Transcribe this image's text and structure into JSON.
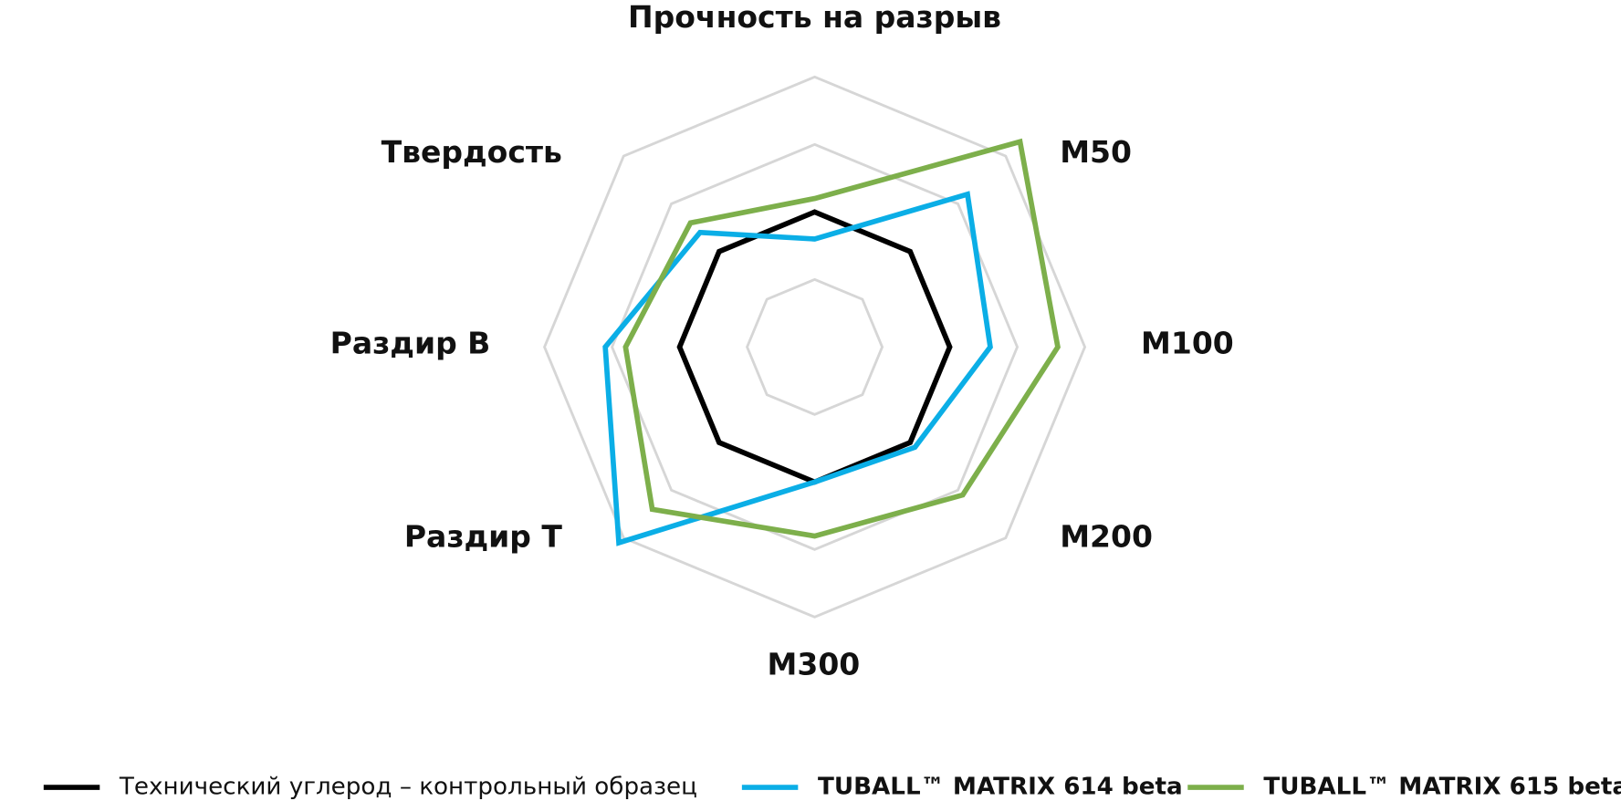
{
  "chart_data": {
    "type": "radar",
    "categories": [
      "Прочность на разрыв",
      "M50",
      "M100",
      "M200",
      "M300",
      "Раздир Т",
      "Раздир В",
      "Твердость"
    ],
    "ylim": [
      0,
      4
    ],
    "yticks": [
      1,
      2,
      3,
      4
    ],
    "grid": true,
    "grid_color": "#d6d6d6",
    "series": [
      {
        "name": "Технический углерод – контрольный образец",
        "color": "#000000",
        "values": [
          2,
          2,
          2,
          2,
          2,
          2,
          2,
          2
        ]
      },
      {
        "name": "TUBALL™ MATRIX 614 beta",
        "color": "#0baee6",
        "values": [
          1.6,
          3.2,
          2.6,
          2.1,
          2.0,
          4.1,
          3.1,
          2.4
        ]
      },
      {
        "name": "TUBALL™ MATRIX 615 beta",
        "color": "#7daf4b",
        "values": [
          2.2,
          4.3,
          3.6,
          3.1,
          2.8,
          3.4,
          2.8,
          2.6
        ]
      }
    ]
  }
}
